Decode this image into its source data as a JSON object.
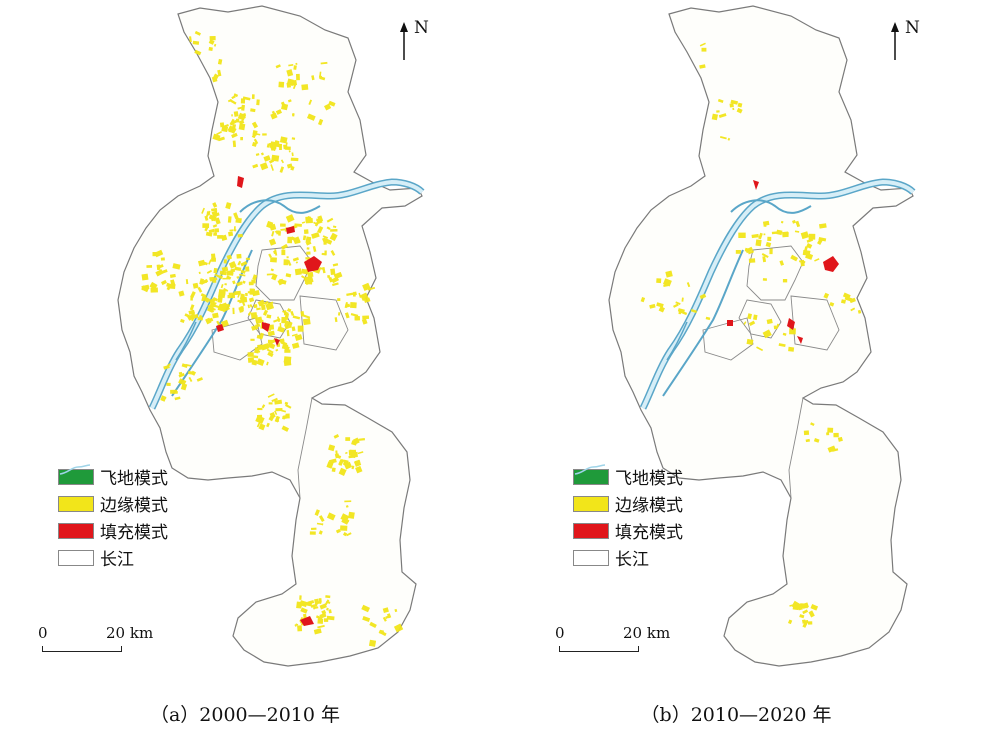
{
  "north_label": "N",
  "panels": [
    {
      "caption": "（a）2000—2010 年",
      "legend": [
        {
          "label": "飞地模式",
          "color": "#1f9a3a",
          "type": "fill"
        },
        {
          "label": "边缘模式",
          "color": "#f2e51a",
          "type": "fill"
        },
        {
          "label": "填充模式",
          "color": "#e0161b",
          "type": "fill"
        },
        {
          "label": "长江",
          "color": "#9fd4e8",
          "type": "river"
        }
      ],
      "scale": {
        "start": "0",
        "end": "20 km"
      },
      "yellow_density": "high"
    },
    {
      "caption": "（b）2010—2020 年",
      "legend": [
        {
          "label": "飞地模式",
          "color": "#1f9a3a",
          "type": "fill"
        },
        {
          "label": "边缘模式",
          "color": "#f2e51a",
          "type": "fill"
        },
        {
          "label": "填充模式",
          "color": "#e0161b",
          "type": "fill"
        },
        {
          "label": "长江",
          "color": "#9fd4e8",
          "type": "river"
        }
      ],
      "scale": {
        "start": "0",
        "end": "20 km"
      },
      "yellow_density": "low"
    }
  ]
}
